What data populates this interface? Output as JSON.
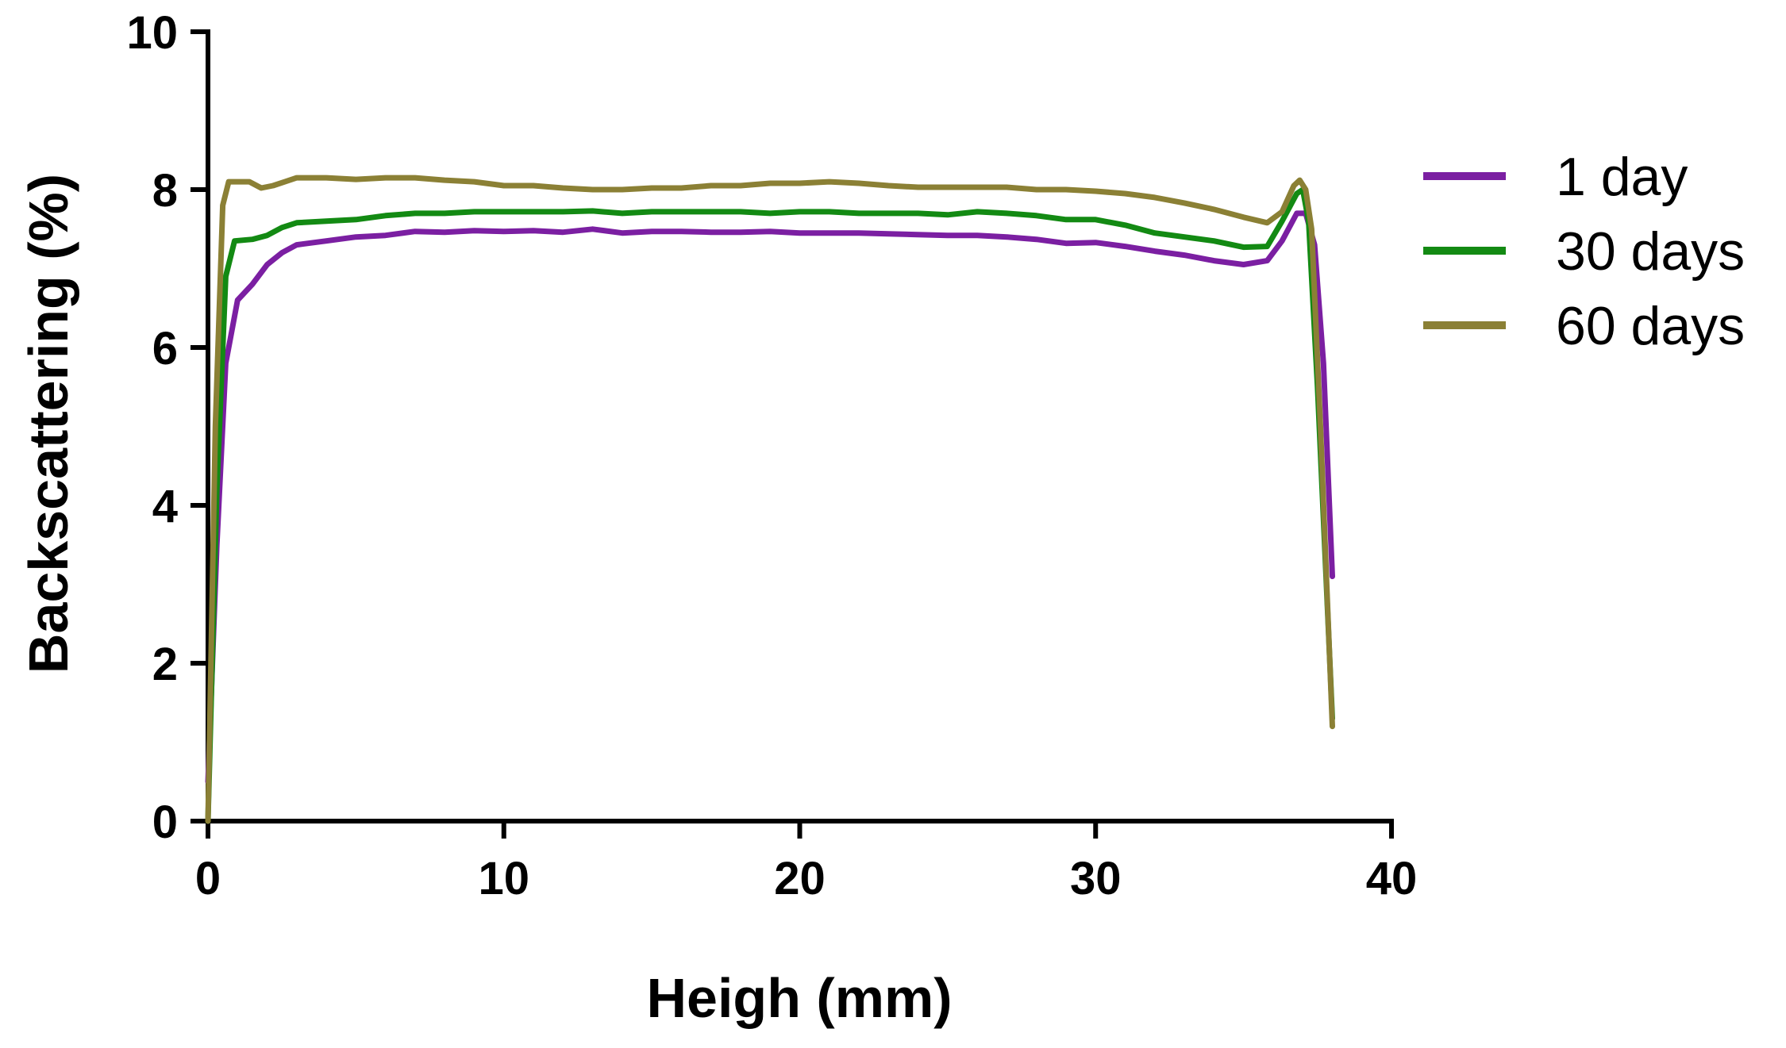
{
  "chart_data": {
    "type": "line",
    "title": "",
    "xlabel": "Heigh (mm)",
    "ylabel": "Backscattering (%)",
    "xlim": [
      0,
      40
    ],
    "ylim": [
      0,
      10
    ],
    "xticks": [
      0,
      10,
      20,
      30,
      40
    ],
    "yticks": [
      0,
      2,
      4,
      6,
      8,
      10
    ],
    "grid": false,
    "legend_position": "right",
    "series": [
      {
        "name": "1 day",
        "color": "#7B1FA2",
        "x": [
          0,
          0.3,
          0.6,
          1.0,
          1.5,
          2.0,
          2.5,
          3.0,
          4.0,
          5.0,
          6.0,
          7.0,
          8.0,
          9.0,
          10.0,
          11.0,
          12.0,
          13.0,
          14.0,
          15.0,
          16.0,
          17.0,
          18.0,
          19.0,
          20.0,
          21.0,
          22.0,
          23.0,
          24.0,
          25.0,
          26.0,
          27.0,
          28.0,
          29.0,
          30.0,
          31.0,
          32.0,
          33.0,
          34.0,
          35.0,
          35.8,
          36.3,
          36.8,
          37.1,
          37.4,
          37.7,
          38.0
        ],
        "y": [
          0.5,
          3.5,
          5.8,
          6.6,
          6.8,
          7.05,
          7.2,
          7.3,
          7.35,
          7.4,
          7.42,
          7.47,
          7.46,
          7.48,
          7.47,
          7.48,
          7.46,
          7.5,
          7.45,
          7.47,
          7.47,
          7.46,
          7.46,
          7.47,
          7.45,
          7.45,
          7.45,
          7.44,
          7.43,
          7.42,
          7.42,
          7.4,
          7.37,
          7.32,
          7.33,
          7.28,
          7.22,
          7.17,
          7.1,
          7.05,
          7.1,
          7.35,
          7.7,
          7.7,
          7.3,
          5.8,
          3.1
        ]
      },
      {
        "name": "30 days",
        "color": "#138A13",
        "x": [
          0,
          0.3,
          0.6,
          0.9,
          1.5,
          2.0,
          2.5,
          3.0,
          4.0,
          5.0,
          6.0,
          7.0,
          8.0,
          9.0,
          10.0,
          11.0,
          12.0,
          13.0,
          14.0,
          15.0,
          16.0,
          17.0,
          18.0,
          19.0,
          20.0,
          21.0,
          22.0,
          23.0,
          24.0,
          25.0,
          26.0,
          27.0,
          28.0,
          29.0,
          30.0,
          31.0,
          32.0,
          33.0,
          34.0,
          35.0,
          35.8,
          36.3,
          36.8,
          37.0,
          37.2,
          37.5,
          37.8,
          38.0
        ],
        "y": [
          0.0,
          4.2,
          6.9,
          7.35,
          7.37,
          7.42,
          7.52,
          7.58,
          7.6,
          7.62,
          7.67,
          7.7,
          7.7,
          7.72,
          7.72,
          7.72,
          7.72,
          7.73,
          7.7,
          7.72,
          7.72,
          7.72,
          7.72,
          7.7,
          7.72,
          7.72,
          7.7,
          7.7,
          7.7,
          7.68,
          7.72,
          7.7,
          7.67,
          7.62,
          7.62,
          7.55,
          7.45,
          7.4,
          7.35,
          7.27,
          7.28,
          7.6,
          7.95,
          8.0,
          7.6,
          5.5,
          3.0,
          1.3
        ]
      },
      {
        "name": "60 days",
        "color": "#8B8035",
        "x": [
          0,
          0.25,
          0.5,
          0.7,
          1.0,
          1.4,
          1.8,
          2.2,
          2.6,
          3.0,
          4.0,
          5.0,
          6.0,
          7.0,
          8.0,
          9.0,
          10.0,
          11.0,
          12.0,
          13.0,
          14.0,
          15.0,
          16.0,
          17.0,
          18.0,
          19.0,
          20.0,
          21.0,
          22.0,
          23.0,
          24.0,
          25.0,
          26.0,
          27.0,
          28.0,
          29.0,
          30.0,
          31.0,
          32.0,
          33.0,
          34.0,
          35.0,
          35.8,
          36.3,
          36.7,
          36.9,
          37.1,
          37.3,
          37.6,
          38.0
        ],
        "y": [
          0.0,
          5.0,
          7.8,
          8.1,
          8.1,
          8.1,
          8.02,
          8.05,
          8.1,
          8.15,
          8.15,
          8.13,
          8.15,
          8.15,
          8.12,
          8.1,
          8.05,
          8.05,
          8.02,
          8.0,
          8.0,
          8.02,
          8.02,
          8.05,
          8.05,
          8.08,
          8.08,
          8.1,
          8.08,
          8.05,
          8.03,
          8.03,
          8.03,
          8.03,
          8.0,
          8.0,
          7.98,
          7.95,
          7.9,
          7.83,
          7.75,
          7.65,
          7.58,
          7.72,
          8.05,
          8.12,
          8.0,
          7.5,
          5.0,
          1.2
        ]
      }
    ]
  }
}
